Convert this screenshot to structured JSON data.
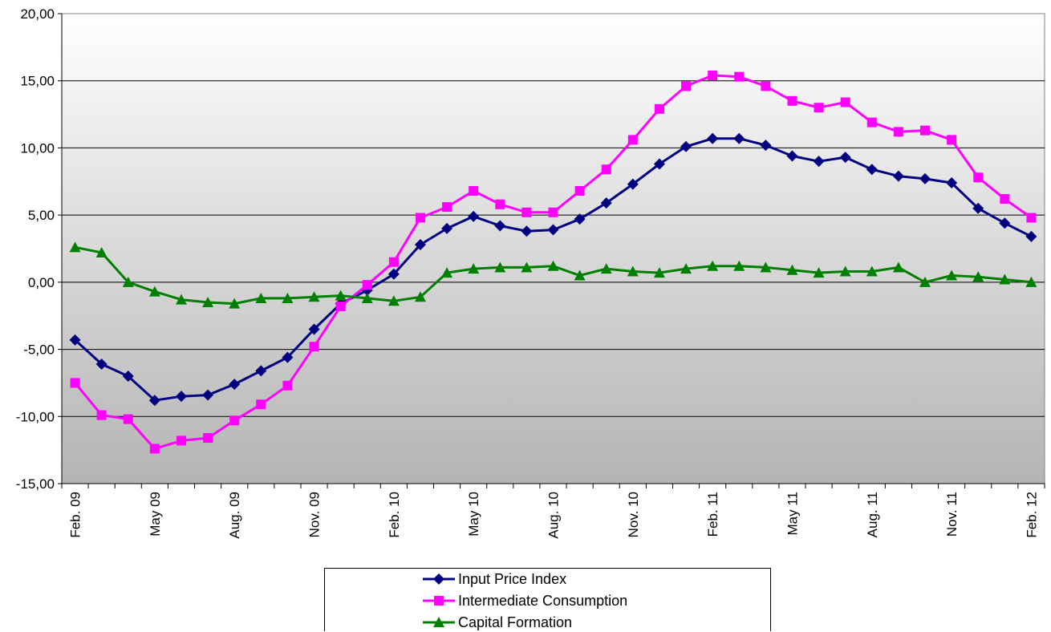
{
  "chart_data": {
    "type": "line",
    "title": "",
    "xlabel": "",
    "ylabel": "",
    "ylim": [
      -15,
      20
    ],
    "y_ticks": [
      "20,00",
      "15,00",
      "10,00",
      "5,00",
      "0,00",
      "-5,00",
      "-10,00",
      "-15,00"
    ],
    "x_tick_labels": [
      "Feb. 09",
      "May 09",
      "Aug. 09",
      "Nov. 09",
      "Feb. 10",
      "May 10",
      "Aug. 10",
      "Nov. 10",
      "Feb. 11",
      "May 11",
      "Aug. 11",
      "Nov. 11",
      "Feb. 12"
    ],
    "grid": true,
    "legend_position": "bottom",
    "x": [
      "2009-02",
      "2009-03",
      "2009-04",
      "2009-05",
      "2009-06",
      "2009-07",
      "2009-08",
      "2009-09",
      "2009-10",
      "2009-11",
      "2009-12",
      "2010-01",
      "2010-02",
      "2010-03",
      "2010-04",
      "2010-05",
      "2010-06",
      "2010-07",
      "2010-08",
      "2010-09",
      "2010-10",
      "2010-11",
      "2010-12",
      "2011-01",
      "2011-02",
      "2011-03",
      "2011-04",
      "2011-05",
      "2011-06",
      "2011-07",
      "2011-08",
      "2011-09",
      "2011-10",
      "2011-11",
      "2011-12",
      "2012-01",
      "2012-02"
    ],
    "series": [
      {
        "name": "Input Price Index",
        "color": "#000080",
        "marker": "diamond",
        "values": [
          -4.3,
          -6.1,
          -7.0,
          -8.8,
          -8.5,
          -8.4,
          -7.6,
          -6.6,
          -5.6,
          -3.5,
          -1.6,
          -0.6,
          0.6,
          2.8,
          4.0,
          4.9,
          4.2,
          3.8,
          3.9,
          4.7,
          5.9,
          7.3,
          8.8,
          10.1,
          10.7,
          10.7,
          10.2,
          9.4,
          9.0,
          9.3,
          8.4,
          7.9,
          7.7,
          7.4,
          5.5,
          4.4,
          3.4
        ]
      },
      {
        "name": "Intermediate Consumption",
        "color": "#FF00FF",
        "marker": "square",
        "values": [
          -7.5,
          -9.9,
          -10.2,
          -12.4,
          -11.8,
          -11.6,
          -10.3,
          -9.1,
          -7.7,
          -4.8,
          -1.8,
          -0.2,
          1.5,
          4.8,
          5.6,
          6.8,
          5.8,
          5.2,
          5.2,
          6.8,
          8.4,
          10.6,
          12.9,
          14.6,
          15.4,
          15.3,
          14.6,
          13.5,
          13.0,
          13.4,
          11.9,
          11.2,
          11.3,
          10.6,
          7.8,
          6.2,
          4.8
        ]
      },
      {
        "name": "Capital Formation",
        "color": "#008000",
        "marker": "triangle",
        "values": [
          2.6,
          2.2,
          0.0,
          -0.7,
          -1.3,
          -1.5,
          -1.6,
          -1.2,
          -1.2,
          -1.1,
          -1.0,
          -1.2,
          -1.4,
          -1.1,
          0.7,
          1.0,
          1.1,
          1.1,
          1.2,
          0.5,
          1.0,
          0.8,
          0.7,
          1.0,
          1.2,
          1.2,
          1.1,
          0.9,
          0.7,
          0.8,
          0.8,
          1.1,
          0.0,
          0.5,
          0.4,
          0.2,
          0.0
        ]
      }
    ]
  }
}
